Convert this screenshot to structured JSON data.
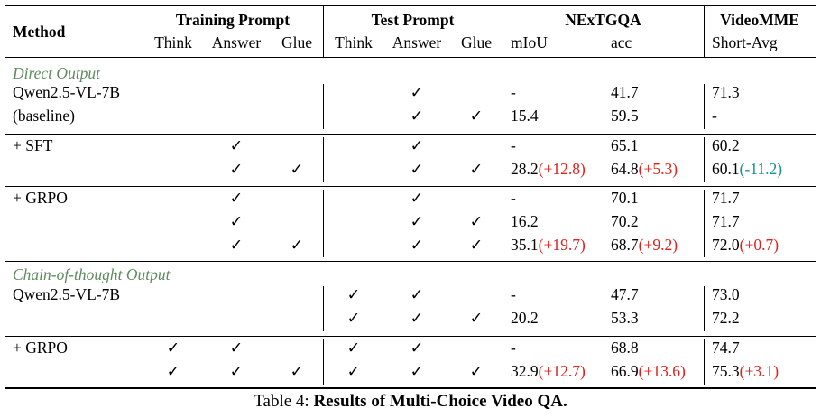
{
  "header": {
    "method": "Method",
    "training_prompt": "Training Prompt",
    "test_prompt": "Test Prompt",
    "nextgqa": "NExTGQA",
    "videomme": "VideoMME",
    "sub": {
      "train_think": "Think",
      "train_answer": "Answer",
      "train_glue": "Glue",
      "test_think": "Think",
      "test_answer": "Answer",
      "test_glue": "Glue",
      "miou": "mIoU",
      "acc": "acc",
      "short_avg": "Short-Avg"
    }
  },
  "check": "✓",
  "sections": {
    "direct": "Direct Output",
    "cot": "Chain-of-thought Output"
  },
  "rows": [
    {
      "method": "Qwen2.5-VL-7B",
      "tr_think": "",
      "tr_answer": "",
      "tr_glue": "",
      "te_think": "",
      "te_answer": "✓",
      "te_glue": "",
      "miou": "-",
      "miou_d": "",
      "acc": "41.7",
      "acc_d": "",
      "vm": "71.3",
      "vm_d": ""
    },
    {
      "method": "(baseline)",
      "tr_think": "",
      "tr_answer": "",
      "tr_glue": "",
      "te_think": "",
      "te_answer": "✓",
      "te_glue": "✓",
      "miou": "15.4",
      "miou_d": "",
      "acc": "59.5",
      "acc_d": "",
      "vm": "-",
      "vm_d": ""
    },
    {
      "method": "+ SFT",
      "tr_think": "",
      "tr_answer": "✓",
      "tr_glue": "",
      "te_think": "",
      "te_answer": "✓",
      "te_glue": "",
      "miou": "-",
      "miou_d": "",
      "acc": "65.1",
      "acc_d": "",
      "vm": "60.2",
      "vm_d": ""
    },
    {
      "method": "",
      "tr_think": "",
      "tr_answer": "✓",
      "tr_glue": "✓",
      "te_think": "",
      "te_answer": "✓",
      "te_glue": "✓",
      "miou": "28.2",
      "miou_d": "(+12.8)",
      "acc": "64.8",
      "acc_d": "(+5.3)",
      "vm": "60.1",
      "vm_d": "(-11.2)"
    },
    {
      "method": "+ GRPO",
      "tr_think": "",
      "tr_answer": "✓",
      "tr_glue": "",
      "te_think": "",
      "te_answer": "✓",
      "te_glue": "",
      "miou": "-",
      "miou_d": "",
      "acc": "70.1",
      "acc_d": "",
      "vm": "71.7",
      "vm_d": ""
    },
    {
      "method": "",
      "tr_think": "",
      "tr_answer": "✓",
      "tr_glue": "",
      "te_think": "",
      "te_answer": "✓",
      "te_glue": "✓",
      "miou": "16.2",
      "miou_d": "",
      "acc": "70.2",
      "acc_d": "",
      "vm": "71.7",
      "vm_d": ""
    },
    {
      "method": "",
      "tr_think": "",
      "tr_answer": "✓",
      "tr_glue": "✓",
      "te_think": "",
      "te_answer": "✓",
      "te_glue": "✓",
      "miou": "35.1",
      "miou_d": "(+19.7)",
      "acc": "68.7",
      "acc_d": "(+9.2)",
      "vm": "72.0",
      "vm_d": "(+0.7)"
    },
    {
      "method": "Qwen2.5-VL-7B",
      "tr_think": "",
      "tr_answer": "",
      "tr_glue": "",
      "te_think": "✓",
      "te_answer": "✓",
      "te_glue": "",
      "miou": "-",
      "miou_d": "",
      "acc": "47.7",
      "acc_d": "",
      "vm": "73.0",
      "vm_d": ""
    },
    {
      "method": "",
      "tr_think": "",
      "tr_answer": "",
      "tr_glue": "",
      "te_think": "✓",
      "te_answer": "✓",
      "te_glue": "✓",
      "miou": "20.2",
      "miou_d": "",
      "acc": "53.3",
      "acc_d": "",
      "vm": "72.2",
      "vm_d": ""
    },
    {
      "method": "+ GRPO",
      "tr_think": "✓",
      "tr_answer": "✓",
      "tr_glue": "",
      "te_think": "✓",
      "te_answer": "✓",
      "te_glue": "",
      "miou": "-",
      "miou_d": "",
      "acc": "68.8",
      "acc_d": "",
      "vm": "74.7",
      "vm_d": ""
    },
    {
      "method": "",
      "tr_think": "✓",
      "tr_answer": "✓",
      "tr_glue": "✓",
      "te_think": "✓",
      "te_answer": "✓",
      "te_glue": "✓",
      "miou": "32.9",
      "miou_d": "(+12.7)",
      "acc": "66.9",
      "acc_d": "(+13.6)",
      "vm": "75.3",
      "vm_d": "(+3.1)"
    }
  ],
  "caption": {
    "prefix": "Table 4: ",
    "title": "Results of Multi-Choice Video QA."
  }
}
